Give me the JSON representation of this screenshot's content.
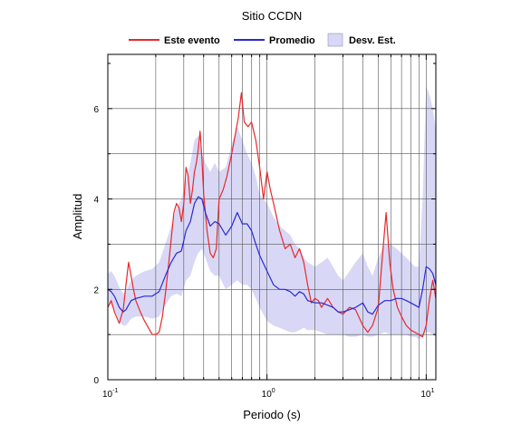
{
  "chart_data": {
    "type": "line",
    "title": "Sitio CCDN",
    "xlabel": "Periodo (s)",
    "ylabel": "Amplitud",
    "x_scale": "log",
    "xlim": [
      0.1,
      11.5
    ],
    "ylim": [
      0,
      7.2
    ],
    "grid": true,
    "legend_position": "top",
    "x_tick_labels": [
      {
        "value": 0.1,
        "base": "10",
        "exp": "-1"
      },
      {
        "value": 1,
        "base": "10",
        "exp": "0"
      },
      {
        "value": 10,
        "base": "10",
        "exp": "1"
      }
    ],
    "y_ticks": [
      0,
      2,
      4,
      6
    ],
    "y_tick_labels": [
      "0",
      "2",
      "4",
      "6"
    ],
    "legend": [
      {
        "label": "Este evento",
        "kind": "line",
        "color": "#e8282b"
      },
      {
        "label": "Promedio",
        "kind": "line",
        "color": "#2a28d4"
      },
      {
        "label": "Desv. Est.",
        "kind": "band",
        "color": "#d8d8f6"
      }
    ],
    "series": [
      {
        "name": "Este evento",
        "color": "#e8282b",
        "x": [
          0.1,
          0.105,
          0.11,
          0.118,
          0.125,
          0.13,
          0.135,
          0.14,
          0.145,
          0.15,
          0.16,
          0.17,
          0.18,
          0.19,
          0.2,
          0.21,
          0.22,
          0.23,
          0.24,
          0.25,
          0.26,
          0.27,
          0.28,
          0.29,
          0.3,
          0.31,
          0.32,
          0.33,
          0.34,
          0.35,
          0.36,
          0.37,
          0.38,
          0.39,
          0.4,
          0.42,
          0.44,
          0.46,
          0.48,
          0.5,
          0.53,
          0.56,
          0.6,
          0.63,
          0.66,
          0.69,
          0.72,
          0.76,
          0.8,
          0.85,
          0.9,
          0.95,
          1.0,
          1.05,
          1.1,
          1.2,
          1.3,
          1.4,
          1.5,
          1.6,
          1.7,
          1.8,
          1.9,
          2.0,
          2.1,
          2.2,
          2.4,
          2.6,
          2.8,
          3.0,
          3.3,
          3.6,
          4.0,
          4.3,
          4.6,
          5.0,
          5.3,
          5.6,
          5.9,
          6.2,
          6.6,
          7.0,
          7.5,
          8.0,
          8.5,
          9.0,
          9.5,
          10.0,
          10.5,
          11.0,
          11.5
        ],
        "y": [
          1.6,
          1.75,
          1.5,
          1.25,
          1.55,
          2.1,
          2.6,
          2.3,
          2.0,
          1.75,
          1.5,
          1.3,
          1.15,
          1.0,
          1.0,
          1.05,
          1.4,
          1.9,
          2.5,
          3.1,
          3.7,
          3.9,
          3.8,
          3.5,
          3.9,
          4.7,
          4.5,
          3.9,
          4.2,
          4.6,
          4.8,
          5.1,
          5.5,
          4.9,
          4.1,
          3.3,
          2.8,
          2.7,
          2.9,
          4.0,
          4.2,
          4.5,
          5.0,
          5.4,
          5.8,
          6.35,
          5.7,
          5.6,
          5.7,
          5.3,
          4.7,
          4.0,
          4.6,
          4.2,
          3.9,
          3.3,
          2.9,
          3.0,
          2.7,
          2.9,
          2.6,
          2.1,
          1.7,
          1.8,
          1.75,
          1.6,
          1.8,
          1.6,
          1.5,
          1.45,
          1.6,
          1.55,
          1.2,
          1.05,
          1.2,
          1.6,
          2.7,
          3.7,
          2.6,
          2.0,
          1.6,
          1.4,
          1.2,
          1.1,
          1.05,
          1.0,
          0.95,
          1.2,
          1.8,
          2.2,
          1.8
        ]
      },
      {
        "name": "Promedio",
        "color": "#2a28d4",
        "x": [
          0.1,
          0.105,
          0.11,
          0.118,
          0.125,
          0.13,
          0.14,
          0.15,
          0.17,
          0.19,
          0.21,
          0.23,
          0.25,
          0.27,
          0.29,
          0.31,
          0.33,
          0.35,
          0.37,
          0.39,
          0.41,
          0.44,
          0.47,
          0.5,
          0.55,
          0.6,
          0.65,
          0.7,
          0.75,
          0.8,
          0.85,
          0.9,
          1.0,
          1.1,
          1.2,
          1.3,
          1.4,
          1.5,
          1.6,
          1.7,
          1.8,
          2.0,
          2.2,
          2.4,
          2.6,
          2.8,
          3.0,
          3.3,
          3.6,
          4.0,
          4.3,
          4.6,
          5.0,
          5.5,
          6.0,
          6.5,
          7.0,
          7.5,
          8.0,
          8.5,
          9.0,
          9.5,
          10.0,
          10.5,
          11.0,
          11.5
        ],
        "y": [
          2.0,
          1.95,
          1.85,
          1.6,
          1.5,
          1.55,
          1.75,
          1.8,
          1.85,
          1.85,
          1.95,
          2.3,
          2.6,
          2.8,
          2.85,
          3.3,
          3.5,
          3.9,
          4.05,
          4.0,
          3.7,
          3.4,
          3.5,
          3.45,
          3.2,
          3.4,
          3.7,
          3.45,
          3.45,
          3.3,
          3.0,
          2.75,
          2.4,
          2.1,
          2.0,
          2.0,
          1.95,
          1.85,
          1.95,
          1.9,
          1.75,
          1.7,
          1.7,
          1.65,
          1.6,
          1.5,
          1.5,
          1.55,
          1.6,
          1.7,
          1.5,
          1.45,
          1.65,
          1.75,
          1.75,
          1.8,
          1.8,
          1.75,
          1.7,
          1.65,
          1.6,
          2.0,
          2.5,
          2.45,
          2.35,
          2.1
        ]
      }
    ],
    "std_band": {
      "name": "Desv. Est.",
      "color": "#d8d8f6",
      "x": [
        0.1,
        0.105,
        0.11,
        0.118,
        0.125,
        0.13,
        0.14,
        0.15,
        0.17,
        0.19,
        0.21,
        0.23,
        0.25,
        0.27,
        0.29,
        0.31,
        0.33,
        0.35,
        0.37,
        0.39,
        0.41,
        0.44,
        0.47,
        0.5,
        0.55,
        0.6,
        0.65,
        0.7,
        0.75,
        0.8,
        0.85,
        0.9,
        1.0,
        1.1,
        1.2,
        1.3,
        1.4,
        1.5,
        1.6,
        1.7,
        1.8,
        2.0,
        2.2,
        2.4,
        2.6,
        2.8,
        3.0,
        3.3,
        3.6,
        4.0,
        4.3,
        4.6,
        5.0,
        5.5,
        6.0,
        6.5,
        7.0,
        7.5,
        8.0,
        8.5,
        9.0,
        9.5,
        10.0,
        10.5,
        11.0,
        11.5
      ],
      "upper": [
        2.35,
        2.4,
        2.3,
        2.05,
        1.9,
        1.95,
        2.2,
        2.3,
        2.4,
        2.45,
        2.6,
        3.0,
        3.4,
        3.8,
        4.0,
        4.4,
        4.8,
        5.3,
        5.4,
        5.0,
        4.8,
        4.6,
        4.8,
        4.6,
        4.7,
        5.2,
        5.6,
        5.3,
        5.0,
        4.8,
        4.5,
        4.1,
        3.9,
        3.6,
        3.4,
        3.3,
        3.2,
        3.0,
        2.9,
        2.7,
        2.6,
        2.5,
        2.6,
        2.7,
        2.5,
        2.3,
        2.2,
        2.4,
        2.6,
        2.8,
        2.5,
        2.3,
        2.7,
        3.0,
        3.0,
        2.9,
        2.8,
        2.7,
        2.6,
        2.5,
        2.5,
        4.0,
        6.5,
        6.3,
        6.0,
        5.5
      ],
      "lower": [
        1.7,
        1.65,
        1.55,
        1.3,
        1.2,
        1.2,
        1.35,
        1.4,
        1.4,
        1.35,
        1.4,
        1.65,
        1.85,
        1.9,
        1.85,
        2.2,
        2.3,
        2.6,
        2.8,
        2.9,
        2.7,
        2.4,
        2.3,
        2.3,
        2.0,
        2.1,
        2.2,
        2.1,
        2.1,
        2.0,
        1.8,
        1.6,
        1.3,
        1.2,
        1.15,
        1.1,
        1.05,
        1.05,
        1.1,
        1.15,
        1.1,
        1.1,
        1.05,
        1.0,
        1.0,
        1.0,
        1.0,
        0.95,
        0.95,
        1.0,
        0.95,
        0.95,
        1.0,
        1.05,
        1.0,
        1.0,
        1.0,
        1.0,
        0.95,
        0.95,
        0.9,
        0.95,
        1.05,
        1.05,
        1.0,
        0.95
      ]
    }
  }
}
